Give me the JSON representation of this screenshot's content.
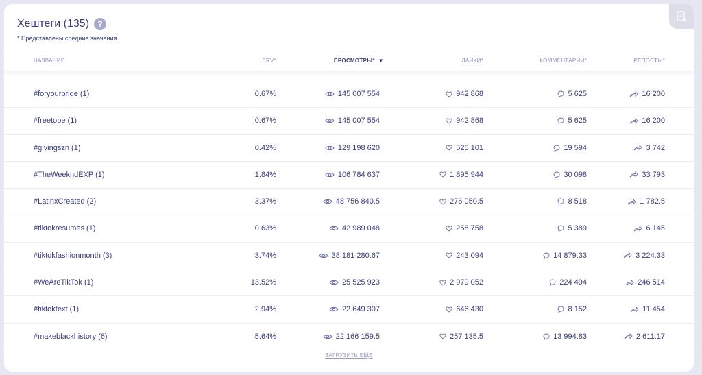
{
  "header": {
    "title": "Хештеги (135)",
    "help_icon": "?",
    "note": "* Представлены средние значения"
  },
  "columns": {
    "name": "НАЗВАНИЕ",
    "erv": "ERV*",
    "views": "ПРОСМОТРЫ*",
    "likes": "ЛАЙКИ*",
    "comments": "КОММЕНТАРИИ*",
    "reposts": "РЕПОСТЫ*"
  },
  "rows": [
    {
      "name": "#foryourpride (1)",
      "erv": "0.67%",
      "views": "145 007 554",
      "likes": "942 868",
      "comments": "5 625",
      "reposts": "16 200"
    },
    {
      "name": "#freetobe (1)",
      "erv": "0.67%",
      "views": "145 007 554",
      "likes": "942 868",
      "comments": "5 625",
      "reposts": "16 200"
    },
    {
      "name": "#givingszn (1)",
      "erv": "0.42%",
      "views": "129 198 620",
      "likes": "525 101",
      "comments": "19 594",
      "reposts": "3 742"
    },
    {
      "name": "#TheWeekndEXP (1)",
      "erv": "1.84%",
      "views": "106 784 637",
      "likes": "1 895 944",
      "comments": "30 098",
      "reposts": "33 793"
    },
    {
      "name": "#LatinxCreated (2)",
      "erv": "3.37%",
      "views": "48 756 840.5",
      "likes": "276 050.5",
      "comments": "8 518",
      "reposts": "1 782.5"
    },
    {
      "name": "#tiktokresumes (1)",
      "erv": "0.63%",
      "views": "42 989 048",
      "likes": "258 758",
      "comments": "5 389",
      "reposts": "6 145"
    },
    {
      "name": "#tiktokfashionmonth (3)",
      "erv": "3.74%",
      "views": "38 181 280.67",
      "likes": "243 094",
      "comments": "14 879.33",
      "reposts": "3 224.33"
    },
    {
      "name": "#WeAreTikTok (1)",
      "erv": "13.52%",
      "views": "25 525 923",
      "likes": "2 979 052",
      "comments": "224 494",
      "reposts": "246 514"
    },
    {
      "name": "#tiktoktext (1)",
      "erv": "2.94%",
      "views": "22 649 307",
      "likes": "646 430",
      "comments": "8 152",
      "reposts": "11 454"
    },
    {
      "name": "#makeblackhistory (6)",
      "erv": "5.64%",
      "views": "22 166 159.5",
      "likes": "257 135.5",
      "comments": "13 994.83",
      "reposts": "2 611.17"
    }
  ],
  "load_more": "ЗАГРУЗИТЬ ЕЩЕ",
  "colors": {
    "text": "#3b3f7a",
    "muted": "#8e90b8",
    "background": "#e6e7f0",
    "card": "#ffffff"
  }
}
